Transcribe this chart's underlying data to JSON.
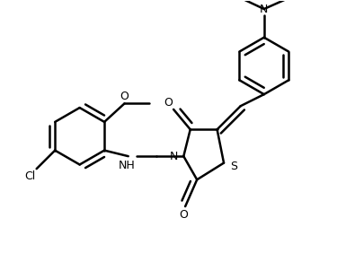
{
  "background_color": "#ffffff",
  "line_color": "#000000",
  "line_width": 1.8,
  "figsize": [
    3.75,
    3.11
  ],
  "dpi": 100,
  "xlim": [
    0,
    10
  ],
  "ylim": [
    0,
    8.3
  ]
}
